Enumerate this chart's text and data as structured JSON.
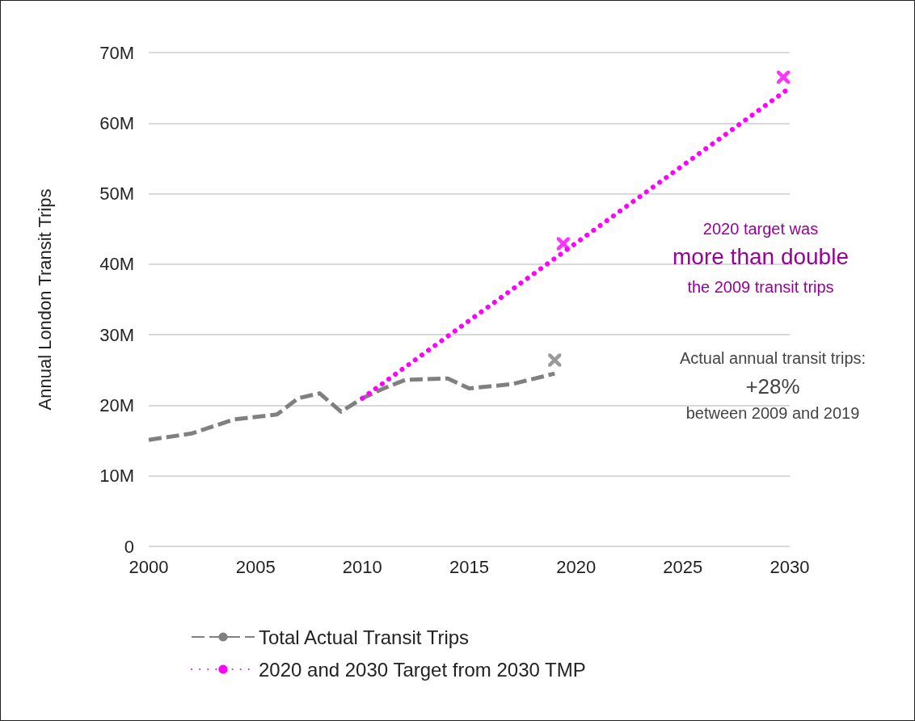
{
  "chart_data": {
    "type": "line",
    "ylabel": "Annual London Transit Trips",
    "xlim": [
      2000,
      2030
    ],
    "xticks": [
      2000,
      2005,
      2010,
      2015,
      2020,
      2025,
      2030
    ],
    "ylim": [
      0,
      70
    ],
    "yticks": [
      0,
      {
        "value": 10,
        "label": "10M"
      },
      {
        "value": 20,
        "label": "20M"
      },
      {
        "value": 30,
        "label": "30M"
      },
      {
        "value": 40,
        "label": "40M"
      },
      {
        "value": 50,
        "label": "50M"
      },
      {
        "value": 60,
        "label": "60M"
      },
      {
        "value": 70,
        "label": "70M"
      }
    ],
    "grid": "y",
    "legend": "bottom",
    "series": [
      {
        "name": "Total Actual Transit Trips",
        "color": "#808080",
        "line_style": "dashed",
        "marker": "none",
        "x": [
          2000,
          2002,
          2004,
          2006,
          2007,
          2008,
          2009,
          2010,
          2011,
          2012,
          2014,
          2015,
          2017,
          2019
        ],
        "values": [
          15.1,
          16.0,
          18.0,
          18.7,
          21.0,
          21.7,
          19.1,
          21.0,
          22.4,
          23.6,
          23.8,
          22.4,
          23.0,
          24.5
        ]
      },
      {
        "name": "2020 and 2030 Target from 2030 TMP",
        "color": "#ff00ff",
        "line_style": "dotted",
        "marker": "none",
        "x": [
          2010,
          2030
        ],
        "values": [
          21.0,
          65.0
        ]
      },
      {
        "type": "scatter",
        "color": "#808080",
        "marker": "cross",
        "x": [
          2019
        ],
        "values": [
          26.4
        ]
      },
      {
        "type": "scatter",
        "color": "#ff00ff",
        "marker": "cross",
        "x": [
          2019.4,
          2029.7
        ],
        "values": [
          42.9,
          66.5
        ]
      }
    ],
    "annotations": [
      "2020 target was",
      "more than double",
      "the 2009 transit trips",
      "Actual annual transit trips:",
      "+28%",
      "between 2009 and 2019"
    ]
  }
}
